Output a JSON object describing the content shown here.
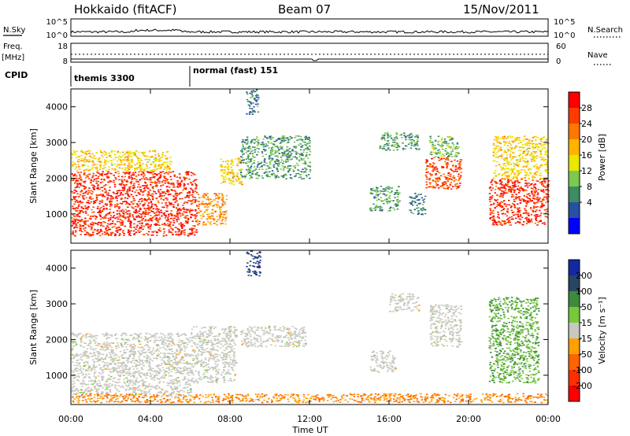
{
  "header": {
    "station": "Hokkaido (fitACF)",
    "beam": "Beam 07",
    "date": "15/Nov/2011"
  },
  "strips": {
    "nsky_label": "N.Sky",
    "nsky_ticks": [
      "10^5",
      "10^0"
    ],
    "nsearch_label": "N.Search",
    "nsearch_ticks": [
      "10^5",
      "10^0"
    ],
    "freq_label_1": "Freq.",
    "freq_label_2": "[MHz]",
    "freq_ticks": [
      "18",
      "8"
    ],
    "nave_label": "Nave",
    "nave_ticks": [
      "60",
      "0"
    ],
    "cpid_label": "CPID",
    "cpid_segments": [
      {
        "label": "themis 3300",
        "start_hour": 0
      },
      {
        "label": "normal (fast) 151",
        "start_hour": 6
      }
    ]
  },
  "panels": {
    "ylabel": "Slant Range [km]",
    "yticks": [
      "4000",
      "3000",
      "2000",
      "1000"
    ],
    "ytick_values": [
      4000,
      3000,
      2000,
      1000
    ],
    "xticks": [
      "00:00",
      "04:00",
      "08:00",
      "12:00",
      "16:00",
      "20:00",
      "00:00"
    ],
    "xlabel": "Time UT"
  },
  "power_scale": {
    "label": "Power [dB]",
    "ticks": [
      "28",
      "24",
      "20",
      "16",
      "12",
      "8",
      "4"
    ],
    "colors": [
      "#ff0000",
      "#ff3c00",
      "#ff7800",
      "#ffb400",
      "#e8e800",
      "#7cc850",
      "#3c8c64",
      "#2850a0",
      "#0000ff"
    ]
  },
  "velocity_scale": {
    "label": "Velocity [m s⁻¹]",
    "ticks": [
      "200",
      "100",
      "50",
      "15",
      "-15",
      "-50",
      "-100",
      "-200"
    ],
    "colors": [
      "#1428a0",
      "#284664",
      "#3c8c3c",
      "#78c83c",
      "#c8c8c0",
      "#ffa000",
      "#ff6400",
      "#ff3000",
      "#ff0000"
    ]
  },
  "chart_data": {
    "type": "heatmap",
    "x_range_hours": [
      0,
      24
    ],
    "y_range_km": [
      180,
      4500
    ],
    "x_label": "Time UT",
    "y_label": "Slant Range [km]",
    "power_regions": [
      {
        "t0": 0.0,
        "t1": 6.3,
        "r0": 400,
        "r1": 2200,
        "power": 28
      },
      {
        "t0": 0.0,
        "t1": 5.0,
        "r0": 2200,
        "r1": 2800,
        "power": 18
      },
      {
        "t0": 6.3,
        "t1": 7.8,
        "r0": 700,
        "r1": 1600,
        "power": 22
      },
      {
        "t0": 7.5,
        "t1": 8.6,
        "r0": 1800,
        "r1": 2600,
        "power": 18
      },
      {
        "t0": 8.5,
        "t1": 12.0,
        "r0": 2000,
        "r1": 3200,
        "power": 10
      },
      {
        "t0": 8.8,
        "t1": 9.4,
        "r0": 3800,
        "r1": 4500,
        "power": 8
      },
      {
        "t0": 15.0,
        "t1": 16.5,
        "r0": 1100,
        "r1": 1800,
        "power": 10
      },
      {
        "t0": 15.5,
        "t1": 17.5,
        "r0": 2800,
        "r1": 3300,
        "power": 10
      },
      {
        "t0": 17.0,
        "t1": 17.8,
        "r0": 1000,
        "r1": 1600,
        "power": 8
      },
      {
        "t0": 17.8,
        "t1": 19.6,
        "r0": 1700,
        "r1": 2600,
        "power": 26
      },
      {
        "t0": 18.0,
        "t1": 19.5,
        "r0": 2600,
        "r1": 3200,
        "power": 12
      },
      {
        "t0": 21.0,
        "t1": 24.0,
        "r0": 700,
        "r1": 2000,
        "power": 28
      },
      {
        "t0": 21.2,
        "t1": 24.0,
        "r0": 2000,
        "r1": 3200,
        "power": 18
      }
    ],
    "velocity_regions": [
      {
        "t0": 0.0,
        "t1": 6.0,
        "r0": 400,
        "r1": 2200,
        "velocity": 0
      },
      {
        "t0": 6.0,
        "t1": 8.3,
        "r0": 800,
        "r1": 2400,
        "velocity": 0
      },
      {
        "t0": 8.5,
        "t1": 11.8,
        "r0": 1800,
        "r1": 2400,
        "velocity": 0
      },
      {
        "t0": 8.8,
        "t1": 9.5,
        "r0": 3800,
        "r1": 4500,
        "velocity": 150
      },
      {
        "t0": 15.0,
        "t1": 16.3,
        "r0": 1100,
        "r1": 1700,
        "velocity": 0
      },
      {
        "t0": 16.0,
        "t1": 17.5,
        "r0": 2800,
        "r1": 3300,
        "velocity": 0
      },
      {
        "t0": 18.0,
        "t1": 19.6,
        "r0": 1800,
        "r1": 3000,
        "velocity": 0
      },
      {
        "t0": 21.0,
        "t1": 23.5,
        "r0": 800,
        "r1": 3200,
        "velocity": 30
      },
      {
        "t0": 0.0,
        "t1": 24.0,
        "r0": 250,
        "r1": 500,
        "velocity": -30
      }
    ]
  }
}
